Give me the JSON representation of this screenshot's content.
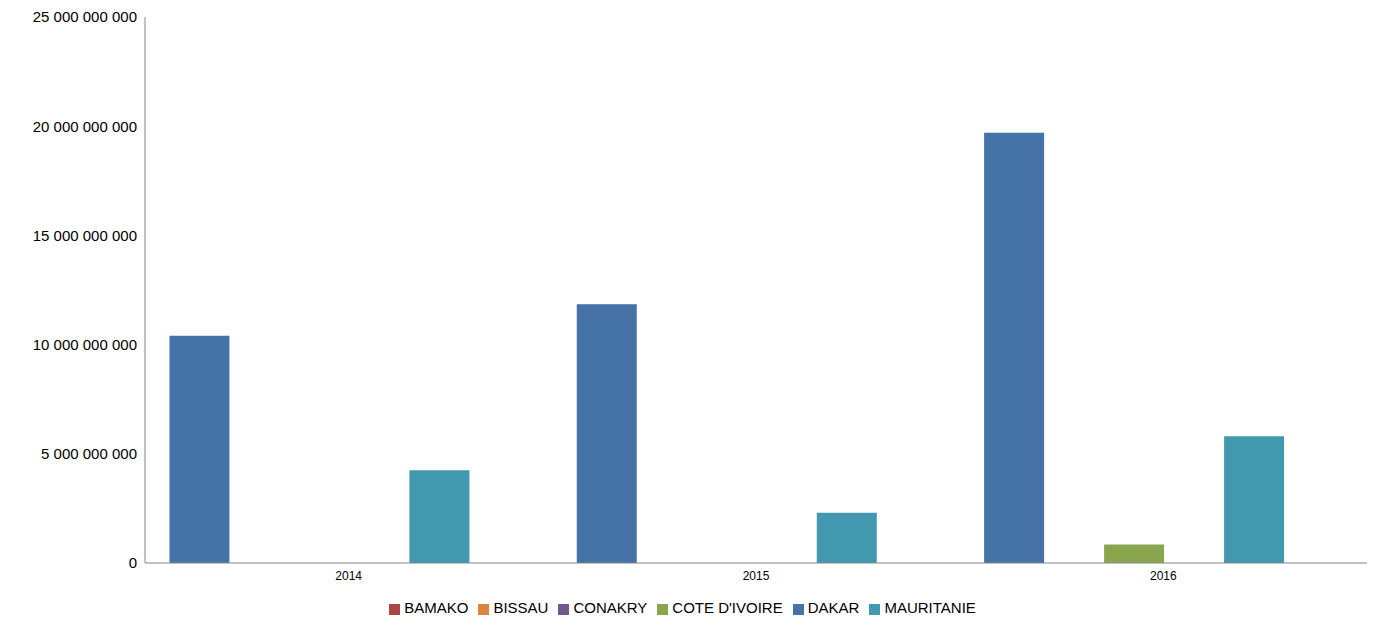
{
  "chart_data": {
    "type": "bar",
    "categories": [
      "2014",
      "2015",
      "2016"
    ],
    "series": [
      {
        "name": "DAKAR",
        "color": "#4572a7",
        "values": [
          10400000000,
          11850000000,
          19700000000
        ]
      },
      {
        "name": "BAMAKO",
        "color": "#aa4643",
        "values": [
          0,
          0,
          0
        ]
      },
      {
        "name": "COTE D'IVOIRE",
        "color": "#89a54e",
        "values": [
          0,
          0,
          850000000
        ]
      },
      {
        "name": "CONAKRY",
        "color": "#71588f",
        "values": [
          0,
          0,
          0
        ]
      },
      {
        "name": "MAURITANIE",
        "color": "#4198af",
        "values": [
          4250000000,
          2300000000,
          5800000000
        ]
      },
      {
        "name": "BISSAU",
        "color": "#db843d",
        "values": [
          0,
          0,
          0
        ]
      }
    ],
    "ylim": [
      0,
      25000000000
    ],
    "yticks": [
      {
        "value": 0,
        "label": "0"
      },
      {
        "value": 5000000000,
        "label": "5 000 000 000"
      },
      {
        "value": 10000000000,
        "label": "10 000 000 000"
      },
      {
        "value": 15000000000,
        "label": "15 000 000 000"
      },
      {
        "value": 20000000000,
        "label": "20 000 000 000"
      },
      {
        "value": 25000000000,
        "label": "25 000 000 000"
      }
    ],
    "legend": "bottom"
  }
}
